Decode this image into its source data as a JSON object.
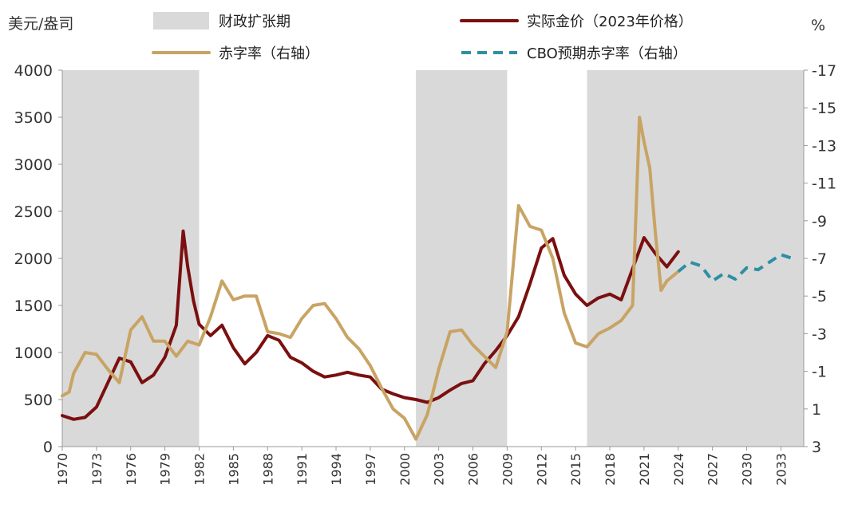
{
  "chart_data": {
    "type": "line",
    "left_axis": {
      "label": "美元/盎司",
      "ylim": [
        0,
        4000
      ],
      "ticks": [
        0,
        500,
        1000,
        1500,
        2000,
        2500,
        3000,
        3500,
        4000
      ]
    },
    "right_axis": {
      "label": "%",
      "ylim": [
        3,
        -17
      ],
      "ticks": [
        3,
        1,
        -1,
        -3,
        -5,
        -7,
        -9,
        -11,
        -13,
        -15,
        -17
      ]
    },
    "x_axis": {
      "xlim": [
        1970,
        2035
      ],
      "ticks": [
        1970,
        1973,
        1976,
        1979,
        1982,
        1985,
        1988,
        1991,
        1994,
        1997,
        2000,
        2003,
        2006,
        2009,
        2012,
        2015,
        2018,
        2021,
        2024,
        2027,
        2030,
        2033
      ]
    },
    "shaded_periods": [
      [
        1970,
        1982
      ],
      [
        2001,
        2009
      ],
      [
        2016,
        2035
      ]
    ],
    "series": [
      {
        "name": "实际金价（2023年价格）",
        "axis": "left",
        "color": "#7B0F0F",
        "dash": false,
        "points": [
          [
            1970,
            330
          ],
          [
            1971,
            290
          ],
          [
            1972,
            310
          ],
          [
            1973,
            420
          ],
          [
            1974,
            680
          ],
          [
            1975,
            940
          ],
          [
            1976,
            900
          ],
          [
            1977,
            680
          ],
          [
            1978,
            760
          ],
          [
            1979,
            950
          ],
          [
            1980,
            1290
          ],
          [
            1980.6,
            2290
          ],
          [
            1981,
            1910
          ],
          [
            1981.5,
            1550
          ],
          [
            1982,
            1300
          ],
          [
            1983,
            1180
          ],
          [
            1984,
            1290
          ],
          [
            1985,
            1050
          ],
          [
            1986,
            880
          ],
          [
            1987,
            1000
          ],
          [
            1988,
            1180
          ],
          [
            1989,
            1130
          ],
          [
            1990,
            950
          ],
          [
            1991,
            890
          ],
          [
            1992,
            800
          ],
          [
            1993,
            740
          ],
          [
            1994,
            760
          ],
          [
            1995,
            790
          ],
          [
            1996,
            760
          ],
          [
            1997,
            740
          ],
          [
            1998,
            610
          ],
          [
            1999,
            560
          ],
          [
            2000,
            520
          ],
          [
            2001,
            500
          ],
          [
            2002,
            470
          ],
          [
            2003,
            520
          ],
          [
            2004,
            600
          ],
          [
            2005,
            670
          ],
          [
            2006,
            700
          ],
          [
            2007,
            880
          ],
          [
            2008,
            1020
          ],
          [
            2009,
            1180
          ],
          [
            2010,
            1380
          ],
          [
            2011,
            1730
          ],
          [
            2012,
            2110
          ],
          [
            2013,
            2210
          ],
          [
            2014,
            1820
          ],
          [
            2015,
            1620
          ],
          [
            2016,
            1500
          ],
          [
            2017,
            1580
          ],
          [
            2018,
            1620
          ],
          [
            2019,
            1560
          ],
          [
            2020,
            1890
          ],
          [
            2021,
            2220
          ],
          [
            2022,
            2050
          ],
          [
            2023,
            1910
          ],
          [
            2024,
            2070
          ]
        ]
      },
      {
        "name": "赤字率（右轴）",
        "axis": "right",
        "color": "#C8A464",
        "dash": false,
        "points": [
          [
            1970,
            0.3
          ],
          [
            1970.6,
            0.1
          ],
          [
            1971,
            -0.9
          ],
          [
            1972,
            -2.0
          ],
          [
            1973,
            -1.9
          ],
          [
            1974,
            -1.1
          ],
          [
            1975,
            -0.4
          ],
          [
            1976,
            -3.2
          ],
          [
            1977,
            -3.9
          ],
          [
            1978,
            -2.6
          ],
          [
            1979,
            -2.6
          ],
          [
            1980,
            -1.8
          ],
          [
            1981,
            -2.6
          ],
          [
            1982,
            -2.4
          ],
          [
            1983,
            -3.9
          ],
          [
            1984,
            -5.8
          ],
          [
            1985,
            -4.8
          ],
          [
            1986,
            -5.0
          ],
          [
            1987,
            -5.0
          ],
          [
            1988,
            -3.1
          ],
          [
            1989,
            -3.0
          ],
          [
            1990,
            -2.8
          ],
          [
            1991,
            -3.8
          ],
          [
            1992,
            -4.5
          ],
          [
            1993,
            -4.6
          ],
          [
            1994,
            -3.8
          ],
          [
            1995,
            -2.8
          ],
          [
            1996,
            -2.2
          ],
          [
            1997,
            -1.3
          ],
          [
            1998,
            -0.1
          ],
          [
            1999,
            1.0
          ],
          [
            2000,
            1.5
          ],
          [
            2001,
            2.6
          ],
          [
            2002,
            1.3
          ],
          [
            2003,
            -1.1
          ],
          [
            2004,
            -3.1
          ],
          [
            2005,
            -3.2
          ],
          [
            2006,
            -2.4
          ],
          [
            2007,
            -1.8
          ],
          [
            2008,
            -1.2
          ],
          [
            2009,
            -3.1
          ],
          [
            2010,
            -9.8
          ],
          [
            2011,
            -8.7
          ],
          [
            2012,
            -8.5
          ],
          [
            2013,
            -7.0
          ],
          [
            2014,
            -4.1
          ],
          [
            2015,
            -2.5
          ],
          [
            2016,
            -2.3
          ],
          [
            2017,
            -3.0
          ],
          [
            2018,
            -3.3
          ],
          [
            2019,
            -3.7
          ],
          [
            2020,
            -4.5
          ],
          [
            2020.6,
            -14.5
          ],
          [
            2021,
            -13.2
          ],
          [
            2021.5,
            -11.8
          ],
          [
            2022,
            -8.3
          ],
          [
            2022.5,
            -5.3
          ],
          [
            2023,
            -5.8
          ],
          [
            2024,
            -6.3
          ]
        ]
      },
      {
        "name": "CBO预期赤字率（右轴）",
        "axis": "right",
        "color": "#2E8FA4",
        "dash": true,
        "points": [
          [
            2024,
            -6.3
          ],
          [
            2025,
            -6.8
          ],
          [
            2026,
            -6.6
          ],
          [
            2027,
            -5.8
          ],
          [
            2028,
            -6.2
          ],
          [
            2029,
            -5.9
          ],
          [
            2030,
            -6.5
          ],
          [
            2031,
            -6.4
          ],
          [
            2032,
            -6.8
          ],
          [
            2033,
            -7.2
          ],
          [
            2034,
            -7.0
          ]
        ]
      }
    ],
    "legend": {
      "placement": "top",
      "entries": [
        {
          "label": "财政扩张期",
          "kind": "fill",
          "color": "#D9D9D9"
        },
        {
          "label": "实际金价（2023年价格）",
          "kind": "line",
          "color": "#7B0F0F"
        },
        {
          "label": "赤字率（右轴）",
          "kind": "line",
          "color": "#C8A464"
        },
        {
          "label": "CBO预期赤字率（右轴）",
          "kind": "dashed",
          "color": "#2E8FA4"
        }
      ]
    },
    "grid": false
  }
}
